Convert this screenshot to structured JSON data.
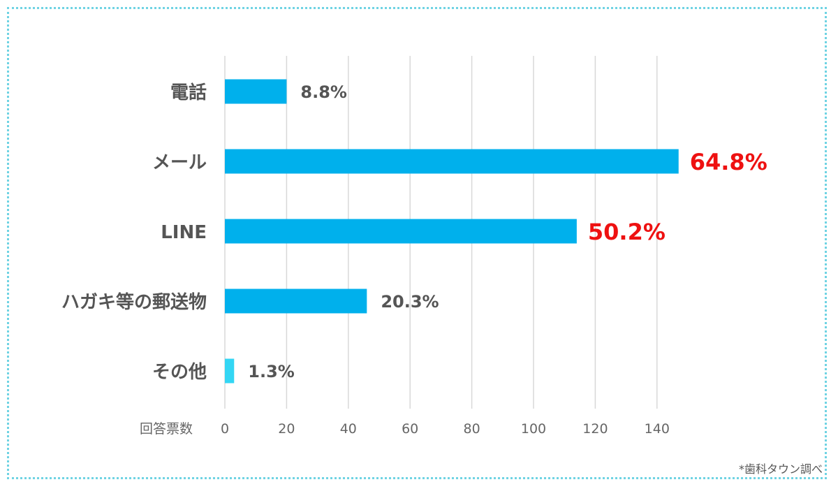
{
  "chart_data": {
    "type": "bar",
    "orientation": "horizontal",
    "categories": [
      "電話",
      "メール",
      "LINE",
      "ハガキ等の郵送物",
      "その他"
    ],
    "values": [
      20,
      147,
      114,
      46,
      3
    ],
    "data_labels": [
      "8.8%",
      "64.8%",
      "50.2%",
      "20.3%",
      "1.3%"
    ],
    "highlight": [
      false,
      true,
      true,
      false,
      false
    ],
    "xlim": [
      0,
      150
    ],
    "xticks": [
      0,
      20,
      40,
      60,
      80,
      100,
      120,
      140
    ],
    "xlabel": "回答票数",
    "grid": true,
    "colors": {
      "bar": "#00b0ec",
      "bar_other": "#33d6f4",
      "highlight_label": "#ee1111",
      "label": "#555555",
      "grid": "#d8d8d8"
    }
  },
  "source": "*歯科タウン調べ"
}
